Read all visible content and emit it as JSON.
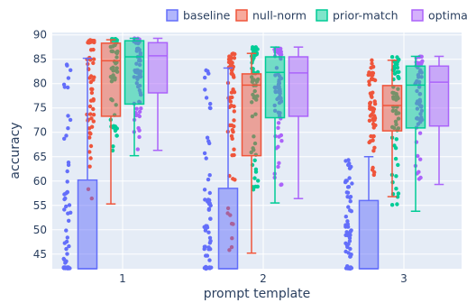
{
  "chart_data": {
    "type": "box",
    "xlabel": "prompt template",
    "ylabel": "accuracy",
    "categories": [
      "1",
      "2",
      "3"
    ],
    "ylim": [
      42,
      90.5
    ],
    "yticks": [
      45,
      50,
      55,
      60,
      65,
      70,
      75,
      80,
      85,
      90
    ],
    "grid": true,
    "legend_position": "top-right",
    "series": [
      {
        "name": "baseline",
        "color": "#636efa",
        "boxes": [
          {
            "lower_fence": 42,
            "q1": 42,
            "median": 42,
            "q3": 60.2,
            "upper_fence": 85.2
          },
          {
            "lower_fence": 42,
            "q1": 42,
            "median": 42,
            "q3": 58.5,
            "upper_fence": 83.2
          },
          {
            "lower_fence": 42,
            "q1": 42,
            "median": 42,
            "q3": 56.0,
            "upper_fence": 65.0
          }
        ]
      },
      {
        "name": "null-norm",
        "color": "#ef553b",
        "boxes": [
          {
            "lower_fence": 55.3,
            "q1": 73.3,
            "median": 84.7,
            "q3": 88.3,
            "upper_fence": 89.0
          },
          {
            "lower_fence": 45.2,
            "q1": 65.2,
            "median": 79.7,
            "q3": 82.0,
            "upper_fence": 86.2
          },
          {
            "lower_fence": 56.8,
            "q1": 70.3,
            "median": 75.5,
            "q3": 79.6,
            "upper_fence": 84.8
          }
        ]
      },
      {
        "name": "prior-match",
        "color": "#00cc96",
        "boxes": [
          {
            "lower_fence": 65.2,
            "q1": 75.8,
            "median": 85.5,
            "q3": 88.8,
            "upper_fence": 89.3
          },
          {
            "lower_fence": 55.5,
            "q1": 73.0,
            "median": 82.3,
            "q3": 85.5,
            "upper_fence": 87.5
          },
          {
            "lower_fence": 53.8,
            "q1": 70.9,
            "median": 79.7,
            "q3": 83.6,
            "upper_fence": 85.6
          }
        ]
      },
      {
        "name": "optimal",
        "color": "#ab63fa",
        "boxes": [
          {
            "lower_fence": 66.3,
            "q1": 78.1,
            "median": 85.7,
            "q3": 88.4,
            "upper_fence": 89.3
          },
          {
            "lower_fence": 56.4,
            "q1": 73.3,
            "median": 82.2,
            "q3": 85.5,
            "upper_fence": 87.5
          },
          {
            "lower_fence": 59.3,
            "q1": 71.3,
            "median": 80.3,
            "q3": 83.6,
            "upper_fence": 85.6
          }
        ]
      }
    ]
  }
}
